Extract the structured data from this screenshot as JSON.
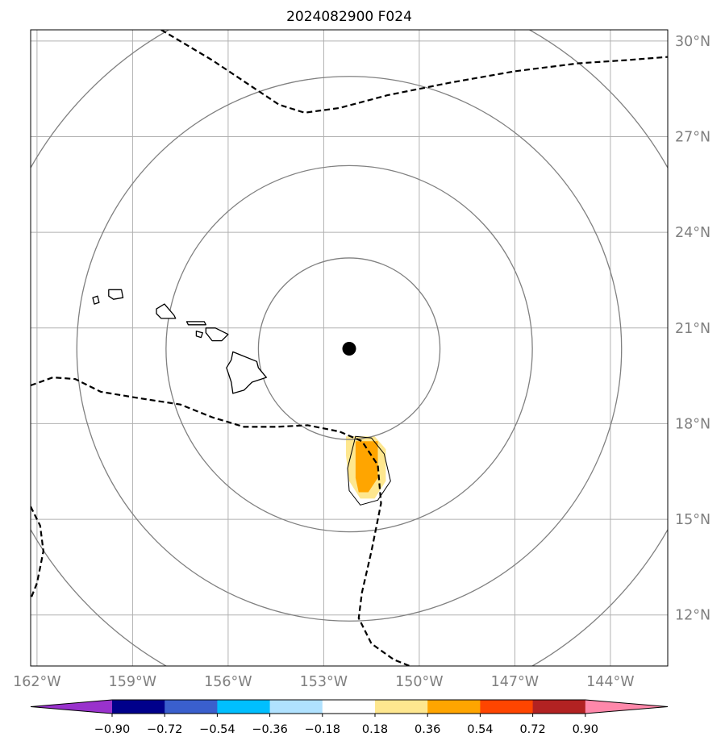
{
  "title": "2024082900 F024",
  "map": {
    "lon_range": [
      -162.2,
      -142.2
    ],
    "lat_range": [
      10.4,
      30.35
    ],
    "projection": "PlateCarree",
    "gridlines": true,
    "lon_ticks": [
      {
        "value": -162,
        "label": "162°W"
      },
      {
        "value": -159,
        "label": "159°W"
      },
      {
        "value": -156,
        "label": "156°W"
      },
      {
        "value": -153,
        "label": "153°W"
      },
      {
        "value": -150,
        "label": "150°W"
      },
      {
        "value": -147,
        "label": "147°W"
      },
      {
        "value": -144,
        "label": "144°W"
      }
    ],
    "lat_ticks": [
      {
        "value": 30,
        "label": "30°N"
      },
      {
        "value": 27,
        "label": "27°N"
      },
      {
        "value": 24,
        "label": "24°N"
      },
      {
        "value": 21,
        "label": "21°N"
      },
      {
        "value": 18,
        "label": "18°N"
      },
      {
        "value": 15,
        "label": "15°N"
      },
      {
        "value": 12,
        "label": "12°N"
      }
    ],
    "storm_center": {
      "lon": -152.2,
      "lat": 20.35,
      "color": "#000000"
    },
    "range_rings_deg": [
      2.85,
      5.75,
      8.55,
      11.5
    ],
    "range_ring_color": "#808080",
    "grid_color": "#b0b0b0",
    "tick_label_color": "#808080"
  },
  "contour_lines": [
    {
      "style": "dashed",
      "color": "#000000",
      "points": [
        [
          -158.1,
          30.35
        ],
        [
          -156.5,
          29.4
        ],
        [
          -155.3,
          28.6
        ],
        [
          -154.4,
          28.0
        ],
        [
          -153.6,
          27.75
        ],
        [
          -152.5,
          27.9
        ],
        [
          -151.0,
          28.3
        ],
        [
          -149.0,
          28.7
        ],
        [
          -147.0,
          29.05
        ],
        [
          -145.0,
          29.3
        ],
        [
          -143.5,
          29.4
        ],
        [
          -142.2,
          29.5
        ]
      ]
    },
    {
      "style": "dashed",
      "color": "#000000",
      "points": [
        [
          -162.2,
          19.2
        ],
        [
          -161.5,
          19.45
        ],
        [
          -160.8,
          19.4
        ],
        [
          -160.0,
          19.0
        ],
        [
          -158.8,
          18.8
        ],
        [
          -157.5,
          18.6
        ],
        [
          -156.5,
          18.2
        ],
        [
          -155.5,
          17.9
        ],
        [
          -154.5,
          17.9
        ],
        [
          -153.5,
          17.95
        ],
        [
          -152.5,
          17.75
        ],
        [
          -151.8,
          17.45
        ],
        [
          -151.3,
          16.7
        ],
        [
          -151.2,
          15.5
        ],
        [
          -151.5,
          14.0
        ],
        [
          -151.8,
          12.7
        ],
        [
          -151.9,
          11.9
        ],
        [
          -151.5,
          11.1
        ],
        [
          -150.8,
          10.6
        ],
        [
          -150.3,
          10.4
        ]
      ]
    },
    {
      "style": "dashed",
      "color": "#000000",
      "points": [
        [
          -162.2,
          15.4
        ],
        [
          -161.9,
          14.8
        ],
        [
          -161.8,
          14.0
        ],
        [
          -162.0,
          13.0
        ],
        [
          -162.2,
          12.5
        ]
      ]
    }
  ],
  "filled_regions": [
    {
      "level": "0.18-0.36",
      "color": "#fee78f",
      "points": [
        [
          -152.3,
          17.6
        ],
        [
          -151.4,
          17.6
        ],
        [
          -151.05,
          17.2
        ],
        [
          -151.05,
          16.2
        ],
        [
          -151.4,
          15.65
        ],
        [
          -151.85,
          15.65
        ],
        [
          -152.2,
          16.2
        ],
        [
          -152.3,
          17.0
        ]
      ]
    },
    {
      "level": "0.36-0.54",
      "color": "#ffa500",
      "points": [
        [
          -152.0,
          17.45
        ],
        [
          -151.3,
          17.45
        ],
        [
          -151.3,
          16.3
        ],
        [
          -151.6,
          15.85
        ],
        [
          -151.9,
          15.85
        ],
        [
          -152.0,
          16.3
        ]
      ]
    }
  ],
  "thin_contour": {
    "color": "#000000",
    "points": [
      [
        -152.0,
        17.6
      ],
      [
        -151.5,
        17.55
      ],
      [
        -151.1,
        17.05
      ],
      [
        -150.9,
        16.2
      ],
      [
        -151.3,
        15.6
      ],
      [
        -151.85,
        15.45
      ],
      [
        -152.2,
        15.9
      ],
      [
        -152.25,
        16.6
      ]
    ]
  },
  "islands": [
    {
      "name": "Kauai",
      "points": [
        [
          -159.75,
          22.2
        ],
        [
          -159.35,
          22.2
        ],
        [
          -159.3,
          21.95
        ],
        [
          -159.6,
          21.9
        ],
        [
          -159.75,
          22.0
        ]
      ]
    },
    {
      "name": "Niihau",
      "points": [
        [
          -160.25,
          21.95
        ],
        [
          -160.1,
          22.0
        ],
        [
          -160.05,
          21.8
        ],
        [
          -160.2,
          21.75
        ]
      ]
    },
    {
      "name": "Oahu",
      "points": [
        [
          -158.25,
          21.6
        ],
        [
          -158.0,
          21.75
        ],
        [
          -157.7,
          21.4
        ],
        [
          -157.65,
          21.3
        ],
        [
          -158.1,
          21.3
        ],
        [
          -158.25,
          21.45
        ]
      ]
    },
    {
      "name": "Molokai",
      "points": [
        [
          -157.3,
          21.2
        ],
        [
          -156.75,
          21.2
        ],
        [
          -156.7,
          21.1
        ],
        [
          -157.25,
          21.1
        ]
      ]
    },
    {
      "name": "Lanai",
      "points": [
        [
          -157.0,
          20.9
        ],
        [
          -156.8,
          20.85
        ],
        [
          -156.85,
          20.7
        ],
        [
          -157.0,
          20.75
        ]
      ]
    },
    {
      "name": "Maui",
      "points": [
        [
          -156.7,
          21.0
        ],
        [
          -156.4,
          21.0
        ],
        [
          -156.0,
          20.8
        ],
        [
          -156.2,
          20.6
        ],
        [
          -156.5,
          20.6
        ],
        [
          -156.7,
          20.85
        ]
      ]
    },
    {
      "name": "Hawaii",
      "points": [
        [
          -155.85,
          20.25
        ],
        [
          -155.6,
          20.15
        ],
        [
          -155.1,
          19.95
        ],
        [
          -155.05,
          19.75
        ],
        [
          -154.8,
          19.45
        ],
        [
          -155.25,
          19.3
        ],
        [
          -155.5,
          19.05
        ],
        [
          -155.85,
          18.95
        ],
        [
          -155.9,
          19.3
        ],
        [
          -156.05,
          19.75
        ],
        [
          -155.9,
          20.0
        ]
      ]
    }
  ],
  "colorbar": {
    "boundaries": [
      -0.9,
      -0.72,
      -0.54,
      -0.36,
      -0.18,
      0.18,
      0.36,
      0.54,
      0.72,
      0.9
    ],
    "tick_labels": [
      "−0.90",
      "−0.72",
      "−0.54",
      "−0.36",
      "−0.18",
      "0.18",
      "0.36",
      "0.54",
      "0.72",
      "0.90"
    ],
    "under_color": "#9932cc",
    "over_color": "#ff88aa",
    "colors": [
      "#00008b",
      "#3a5fcd",
      "#00bfff",
      "#b0e2ff",
      "#ffffff",
      "#fee78f",
      "#ffa500",
      "#ff4500",
      "#b22222"
    ]
  }
}
